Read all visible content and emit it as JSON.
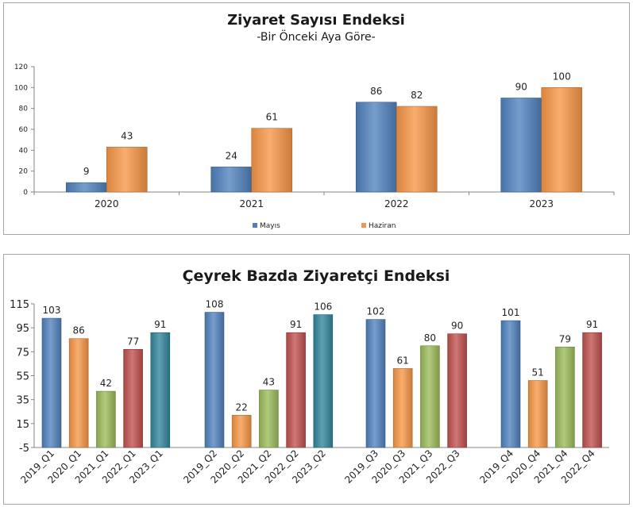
{
  "charts": [
    {
      "title": "Ziyaret Sayısı Endeksi",
      "subtitle": "-Bir Önceki Aya Göre-"
    },
    {
      "title": "Çeyrek Bazda Ziyaretçi Endeksi"
    }
  ],
  "chart_data": [
    {
      "type": "bar",
      "title": "Ziyaret Sayısı Endeksi",
      "subtitle": "-Bir Önceki Aya Göre-",
      "categories": [
        "2020",
        "2021",
        "2022",
        "2023"
      ],
      "series": [
        {
          "name": "Mayıs",
          "values": [
            9,
            24,
            86,
            90
          ],
          "color": "#4f81bd"
        },
        {
          "name": "Haziran",
          "values": [
            43,
            61,
            82,
            100
          ],
          "color": "#f79646"
        }
      ],
      "ylim": [
        0,
        120
      ],
      "yticks": [
        0,
        20,
        40,
        60,
        80,
        100,
        120
      ],
      "grid": false,
      "legend": "bottom"
    },
    {
      "type": "bar",
      "title": "Çeyrek Bazda Ziyaretçi Endeksi",
      "groups": [
        {
          "categories": [
            "2019_Q1",
            "2020_Q1",
            "2021_Q1",
            "2022_Q1",
            "2023_Q1"
          ],
          "values": [
            103,
            86,
            42,
            77,
            91
          ]
        },
        {
          "categories": [
            "2019_Q2",
            "2020_Q2",
            "2021_Q2",
            "2022_Q2",
            "2023_Q2"
          ],
          "values": [
            108,
            22,
            43,
            91,
            106
          ]
        },
        {
          "categories": [
            "2019_Q3",
            "2020_Q3",
            "2021_Q3",
            "2022_Q3"
          ],
          "values": [
            102,
            61,
            80,
            90
          ]
        },
        {
          "categories": [
            "2019_Q4",
            "2020_Q4",
            "2021_Q4",
            "2022_Q4"
          ],
          "values": [
            101,
            51,
            79,
            91
          ]
        }
      ],
      "colors": [
        "#4f81bd",
        "#f79646",
        "#9bbb59",
        "#c0504d",
        "#31859c"
      ],
      "ylim": [
        -5,
        115
      ],
      "yticks": [
        -5,
        15,
        35,
        55,
        75,
        95,
        115
      ],
      "grid": false,
      "legend": "none"
    }
  ]
}
